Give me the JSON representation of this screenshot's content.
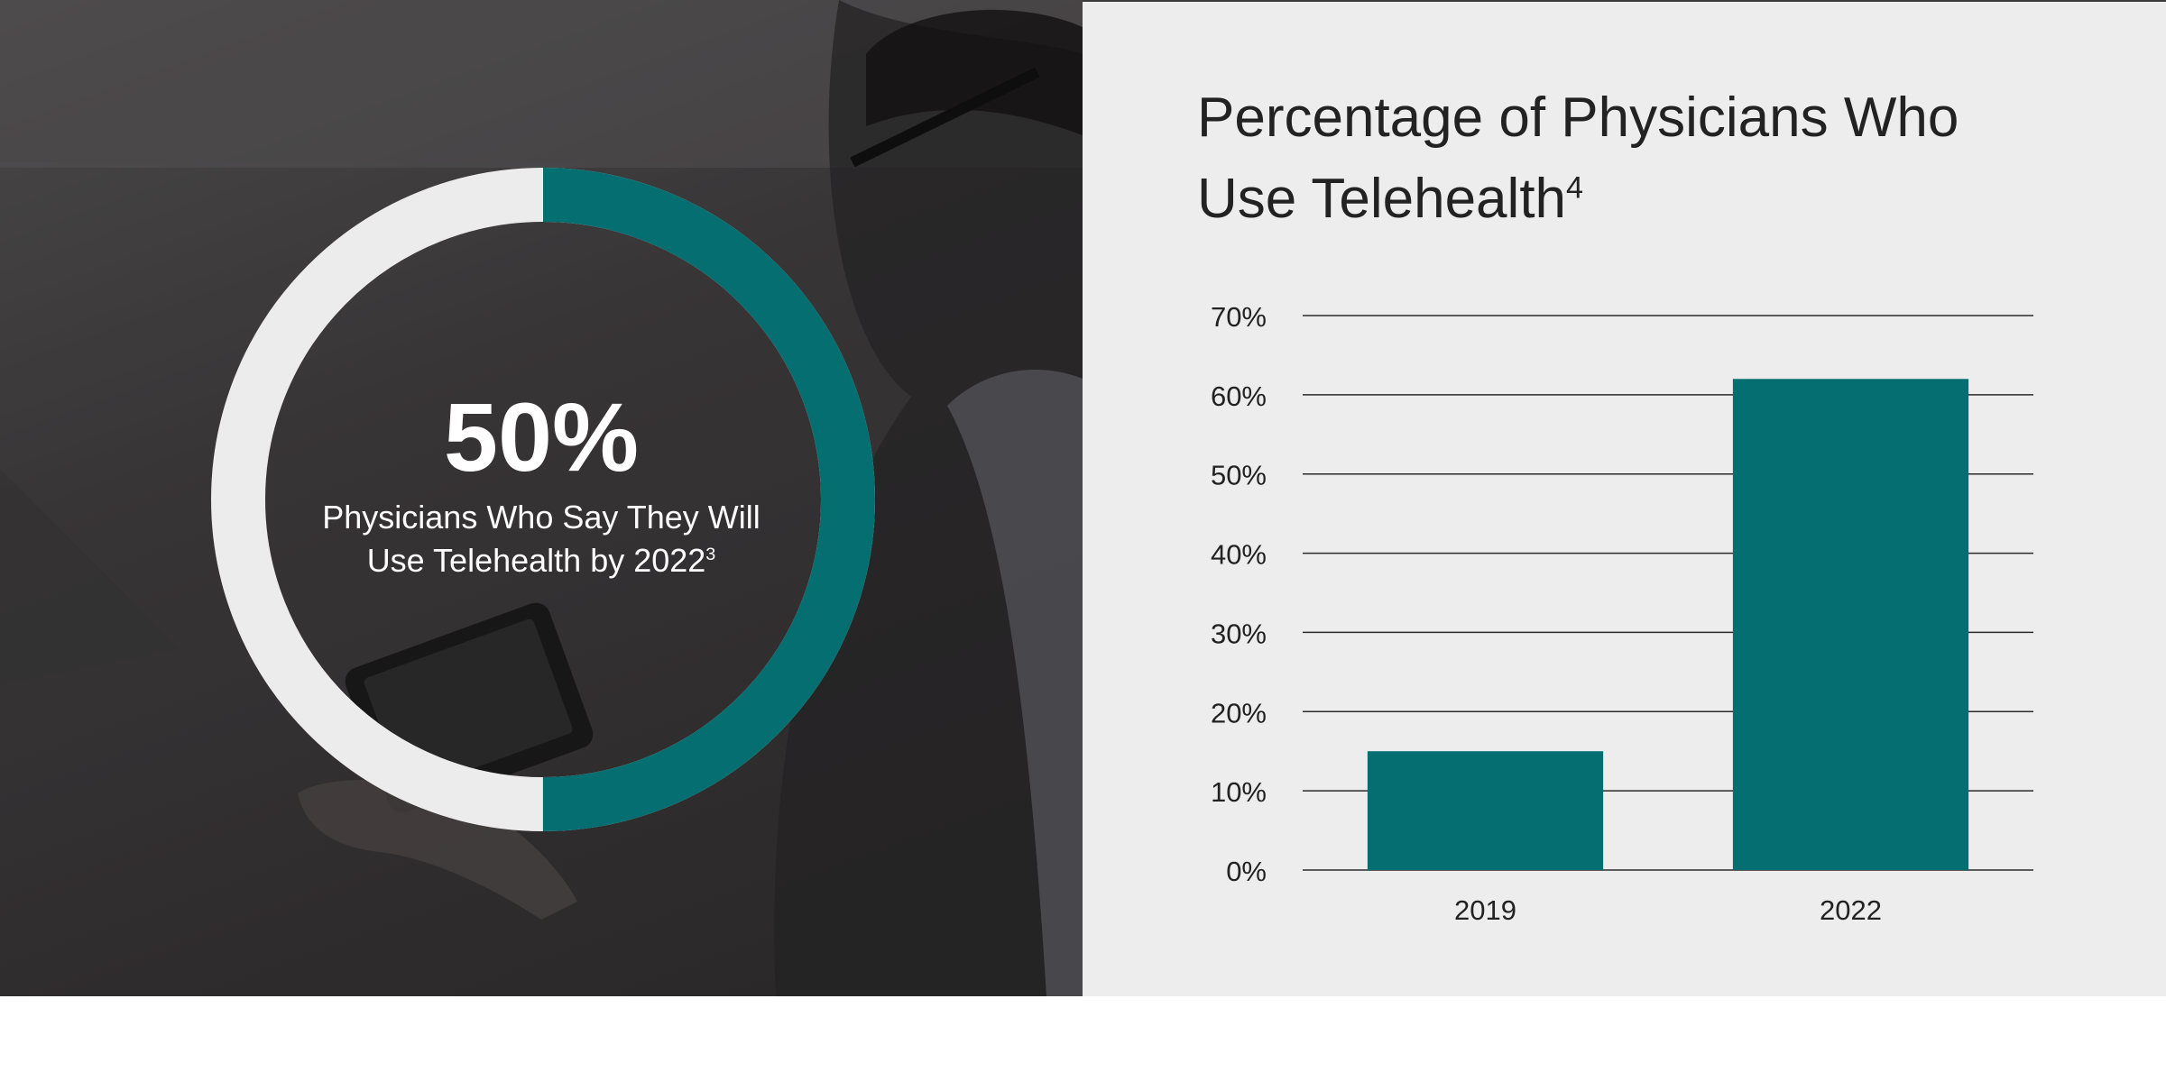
{
  "colors": {
    "accent": "#046e70",
    "ring_track": "#ececec",
    "right_background": "#ededed",
    "text_dark": "#222222",
    "gridline": "#2b2b2b"
  },
  "left": {
    "image_description": "Man in glasses and striped shirt looking at a tablet (dimmed background photo)",
    "donut": {
      "value_label": "50%",
      "fraction": 0.5,
      "caption_line1": "Physicians Who Say They Will",
      "caption_line2": "Use Telehealth by 2022",
      "caption_sup": "3"
    }
  },
  "right": {
    "title_line1": "Percentage of Physicians Who",
    "title_line2": "Use Telehealth",
    "title_sup": "4"
  },
  "chart_data": {
    "type": "bar",
    "title": "Percentage of Physicians Who Use Telehealth",
    "categories": [
      "2019",
      "2022"
    ],
    "values": [
      15,
      62
    ],
    "ylim": [
      0,
      70
    ],
    "yticks": [
      "0%",
      "10%",
      "20%",
      "30%",
      "40%",
      "50%",
      "60%",
      "70%"
    ],
    "grid": true,
    "bar_color": "#046e70"
  }
}
